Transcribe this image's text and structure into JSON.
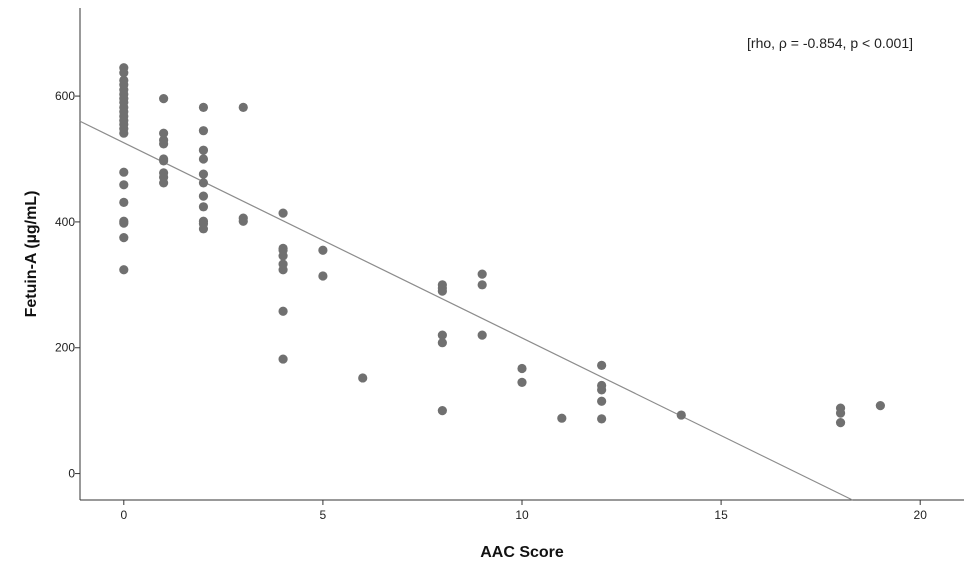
{
  "chart_data": {
    "type": "scatter",
    "xlabel": "AAC Score",
    "ylabel": "Fetuin-A (µg/mL)",
    "annotation": "[rho, ρ = -0.854, p < 0.001]",
    "xlim": [
      -1.1,
      21.1
    ],
    "ylim": [
      -42,
      740
    ],
    "x_ticks": [
      0,
      5,
      10,
      15,
      20
    ],
    "y_ticks": [
      0,
      200,
      400,
      600
    ],
    "grid": false,
    "point_color": "#707070",
    "line_color": "#8c8c8c",
    "fit_line": {
      "x": [
        -1.1,
        18.3
      ],
      "y": [
        560,
        -42
      ]
    },
    "points": [
      [
        0,
        645
      ],
      [
        0,
        637
      ],
      [
        0,
        625
      ],
      [
        0,
        618
      ],
      [
        0,
        610
      ],
      [
        0,
        603
      ],
      [
        0,
        596
      ],
      [
        0,
        590
      ],
      [
        0,
        582
      ],
      [
        0,
        575
      ],
      [
        0,
        568
      ],
      [
        0,
        561
      ],
      [
        0,
        555
      ],
      [
        0,
        548
      ],
      [
        0,
        541
      ],
      [
        0,
        479
      ],
      [
        0,
        459
      ],
      [
        0,
        431
      ],
      [
        0,
        401
      ],
      [
        0,
        398
      ],
      [
        0,
        375
      ],
      [
        0,
        324
      ],
      [
        1,
        596
      ],
      [
        1,
        541
      ],
      [
        1,
        530
      ],
      [
        1,
        524
      ],
      [
        1,
        500
      ],
      [
        1,
        497
      ],
      [
        1,
        478
      ],
      [
        1,
        471
      ],
      [
        1,
        462
      ],
      [
        2,
        582
      ],
      [
        2,
        545
      ],
      [
        2,
        514
      ],
      [
        2,
        500
      ],
      [
        2,
        476
      ],
      [
        2,
        462
      ],
      [
        2,
        441
      ],
      [
        2,
        424
      ],
      [
        2,
        401
      ],
      [
        2,
        397
      ],
      [
        2,
        389
      ],
      [
        3,
        582
      ],
      [
        3,
        406
      ],
      [
        3,
        401
      ],
      [
        4,
        414
      ],
      [
        4,
        358
      ],
      [
        4,
        355
      ],
      [
        4,
        346
      ],
      [
        4,
        333
      ],
      [
        4,
        324
      ],
      [
        4,
        258
      ],
      [
        4,
        182
      ],
      [
        5,
        355
      ],
      [
        5,
        314
      ],
      [
        6,
        152
      ],
      [
        8,
        300
      ],
      [
        8,
        295
      ],
      [
        8,
        290
      ],
      [
        8,
        220
      ],
      [
        8,
        208
      ],
      [
        8,
        100
      ],
      [
        9,
        317
      ],
      [
        9,
        300
      ],
      [
        9,
        220
      ],
      [
        10,
        167
      ],
      [
        10,
        145
      ],
      [
        11,
        88
      ],
      [
        12,
        172
      ],
      [
        12,
        140
      ],
      [
        12,
        133
      ],
      [
        12,
        115
      ],
      [
        12,
        87
      ],
      [
        14,
        93
      ],
      [
        18,
        104
      ],
      [
        18,
        96
      ],
      [
        18,
        81
      ],
      [
        19,
        108
      ]
    ]
  }
}
